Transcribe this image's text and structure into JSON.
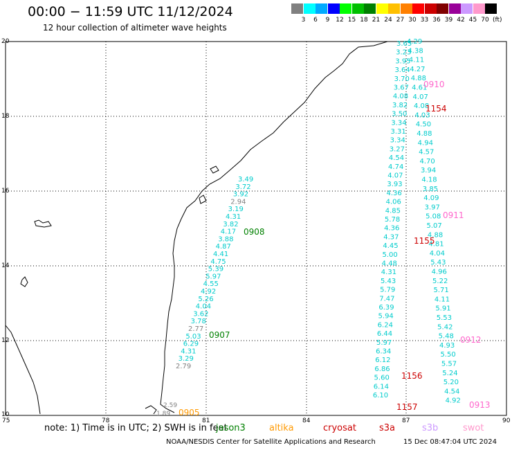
{
  "header": {
    "title": "00:00 − 11:59 UTC 11/12/2024",
    "subtitle": "12 hour collection of altimeter wave heights"
  },
  "colorbar": {
    "unit": "(ft)",
    "labels": [
      "3",
      "6",
      "9",
      "12",
      "15",
      "18",
      "21",
      "24",
      "27",
      "30",
      "33",
      "36",
      "39",
      "42",
      "45",
      "70"
    ],
    "colors": [
      "#808080",
      "#00ffff",
      "#00aaff",
      "#0000ff",
      "#00ff00",
      "#00c000",
      "#008000",
      "#ffff00",
      "#ffc000",
      "#ff8000",
      "#ff0000",
      "#cc0000",
      "#800000",
      "#990099",
      "#cc99ff",
      "#ff99cc",
      "#000000"
    ]
  },
  "axes": {
    "x_ticks": [
      "75",
      "78",
      "81",
      "84",
      "87",
      "90"
    ],
    "y_ticks": [
      "20",
      "18",
      "16",
      "14",
      "12",
      "10"
    ]
  },
  "passes": [
    {
      "label": "0908",
      "color": "#008000"
    },
    {
      "label": "0907",
      "color": "#008000"
    },
    {
      "label": "0910",
      "color": "#ff66cc"
    },
    {
      "label": "1154",
      "color": "#cc0000"
    },
    {
      "label": "0911",
      "color": "#ff66cc"
    },
    {
      "label": "1155",
      "color": "#cc0000"
    },
    {
      "label": "0912",
      "color": "#ff66cc"
    },
    {
      "label": "1156",
      "color": "#cc0000"
    },
    {
      "label": "1157",
      "color": "#cc0000"
    },
    {
      "label": "0913",
      "color": "#ff66cc"
    },
    {
      "label": "0905",
      "color": "#ff9900"
    }
  ],
  "track_a": [
    "3.49",
    "3.72",
    "3.92",
    "2.94",
    "3.19",
    "4.31",
    "3.82",
    "4.17",
    "3.88",
    "4.87",
    "4.41",
    "4.75",
    "5.39",
    "5.97",
    "4.55",
    "4.92",
    "5.26",
    "4.04",
    "3.62",
    "3.78",
    "2.77",
    "5.03",
    "6.29",
    "4.31",
    "3.29",
    "2.79"
  ],
  "track_a_colors": [
    "#00cccc",
    "#00cccc",
    "#00cccc",
    "#808080",
    "#00cccc",
    "#00cccc",
    "#00cccc",
    "#00cccc",
    "#00cccc",
    "#00cccc",
    "#00cccc",
    "#00cccc",
    "#00cccc",
    "#00cccc",
    "#00cccc",
    "#00cccc",
    "#00cccc",
    "#00cccc",
    "#00cccc",
    "#00cccc",
    "#808080",
    "#00cccc",
    "#00cccc",
    "#00cccc",
    "#00cccc",
    "#808080"
  ],
  "track_b": [
    "3.65",
    "3.23",
    "3.95",
    "3.64",
    "3.70",
    "3.67",
    "4.08",
    "3.82",
    "3.50",
    "3.34",
    "3.31",
    "3.34",
    "3.27",
    "4.54",
    "4.74",
    "4.07",
    "3.93",
    "4.36",
    "4.06",
    "4.85",
    "5.78",
    "4.36",
    "4.37",
    "4.45",
    "5.00",
    "4.48",
    "4.31",
    "5.43",
    "5.79",
    "7.47",
    "6.39",
    "5.94",
    "6.24",
    "6.44",
    "5.97",
    "6.34",
    "6.12",
    "6.86",
    "5.60",
    "6.14",
    "6.10"
  ],
  "track_c": [
    "4.29",
    "4.38",
    "4.11",
    "4.27",
    "4.88",
    "4.61",
    "4.07",
    "4.08",
    "4.03",
    "4.50",
    "4.88",
    "4.94",
    "4.57",
    "4.70",
    "3.94",
    "4.18",
    "3.85",
    "4.09",
    "3.97",
    "5.08",
    "5.07",
    "4.88",
    "4.81",
    "4.04",
    "5.43",
    "4.96",
    "5.22",
    "5.71",
    "4.11",
    "5.91",
    "5.53",
    "5.42",
    "5.48",
    "4.93",
    "5.50",
    "5.57",
    "5.24",
    "5.20",
    "4.54",
    "4.92"
  ],
  "coast_labels": [
    "2.59",
    "1.89"
  ],
  "footer": {
    "note": "note:  1) Time is in UTC;  2) SWH is in feet",
    "legend": [
      {
        "name": "jason3",
        "color": "#008000"
      },
      {
        "name": "altika",
        "color": "#ff9900"
      },
      {
        "name": "cryosat",
        "color": "#cc0000"
      },
      {
        "name": "s3a",
        "color": "#cc0000"
      },
      {
        "name": "s3b",
        "color": "#cc99ff"
      },
      {
        "name": "swot",
        "color": "#ff99cc"
      }
    ],
    "credit": "NOAA/NESDIS Center for Satellite Applications and Research",
    "timestamp": "15 Dec 08:47:04 UTC 2024"
  }
}
